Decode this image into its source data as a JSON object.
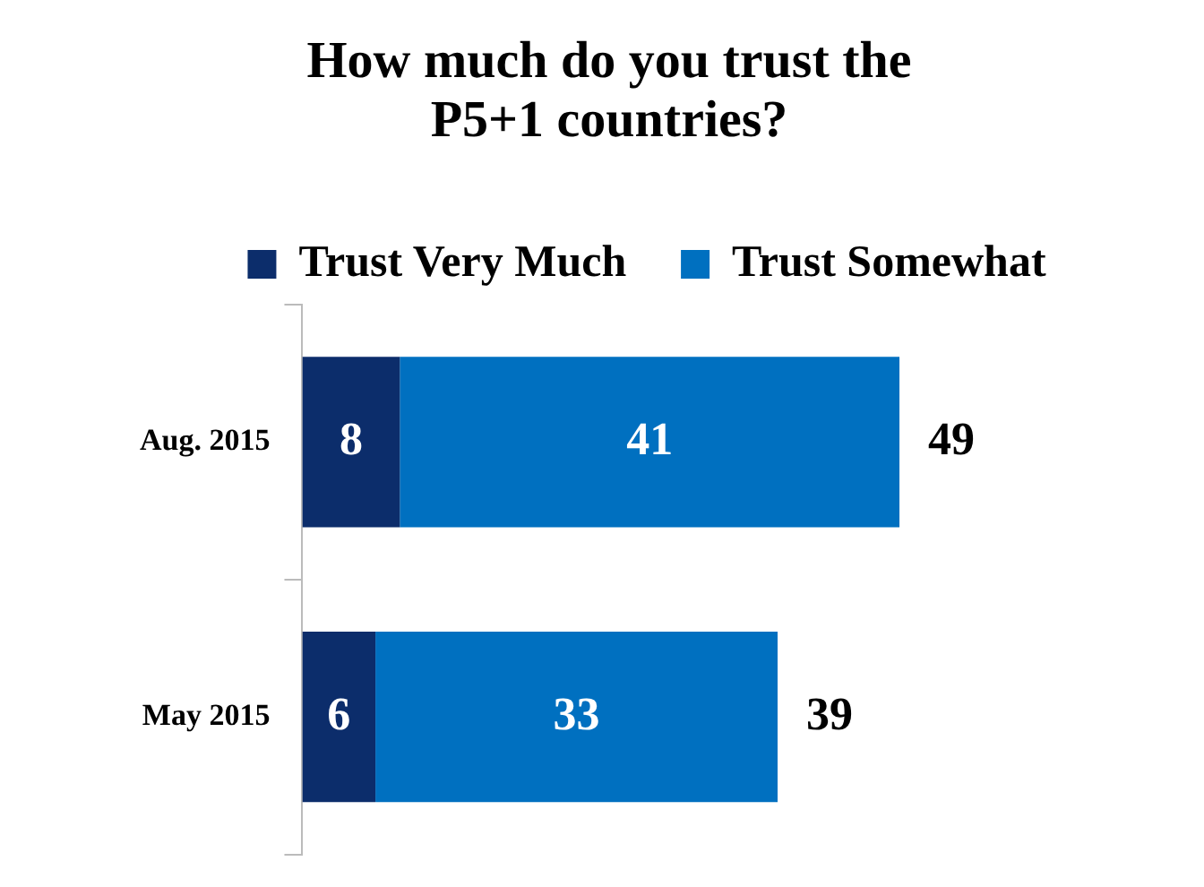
{
  "chart_data": {
    "type": "bar",
    "title": "How much do you trust the P5+1 countries?",
    "orientation": "horizontal",
    "stacked": true,
    "categories": [
      "Aug. 2015",
      "May 2015"
    ],
    "series": [
      {
        "name": "Trust Very Much",
        "color": "#0c2d6b",
        "values": [
          8,
          6
        ]
      },
      {
        "name": "Trust Somewhat",
        "color": "#0070c0",
        "values": [
          41,
          33
        ]
      }
    ],
    "data_labels": true,
    "totals": [
      "49",
      "39"
    ],
    "legend": "top",
    "grid": false
  }
}
